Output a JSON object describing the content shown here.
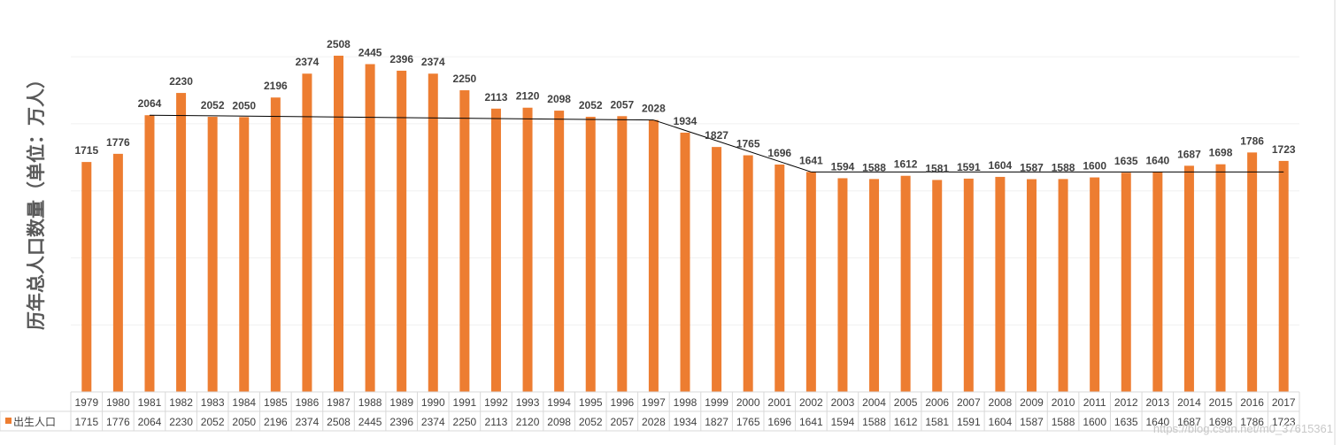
{
  "chart_data": {
    "type": "bar",
    "ylabel": "历年总人口数量（单位：万人）",
    "ylim": [
      0,
      2600
    ],
    "grid": true,
    "legend_placement": "left of data table",
    "series": [
      {
        "name": "出生人口",
        "color": "#ED7D31",
        "values": [
          1715,
          1776,
          2064,
          2230,
          2052,
          2050,
          2196,
          2374,
          2508,
          2445,
          2396,
          2374,
          2250,
          2113,
          2120,
          2098,
          2052,
          2057,
          2028,
          1934,
          1827,
          1765,
          1696,
          1641,
          1594,
          1588,
          1612,
          1581,
          1591,
          1604,
          1587,
          1588,
          1600,
          1635,
          1640,
          1687,
          1698,
          1786,
          1723
        ]
      }
    ],
    "categories": [
      "1979",
      "1980",
      "1981",
      "1982",
      "1983",
      "1984",
      "1985",
      "1986",
      "1987",
      "1988",
      "1989",
      "1990",
      "1991",
      "1992",
      "1993",
      "1994",
      "1995",
      "1996",
      "1997",
      "1998",
      "1999",
      "2000",
      "2001",
      "2002",
      "2003",
      "2004",
      "2005",
      "2006",
      "2007",
      "2008",
      "2009",
      "2010",
      "2011",
      "2012",
      "2013",
      "2014",
      "2015",
      "2016",
      "2017"
    ],
    "trend_lines": [
      {
        "from": [
          "1981",
          2064
        ],
        "to": [
          "1997",
          2028
        ]
      },
      {
        "from": [
          "1997",
          2028
        ],
        "to": [
          "2002",
          1641
        ]
      },
      {
        "from": [
          "2002",
          1641
        ],
        "to": [
          "2017",
          1641
        ]
      }
    ],
    "data_table": true
  },
  "watermark": "https://blog.csdn.net/m0_37615361"
}
